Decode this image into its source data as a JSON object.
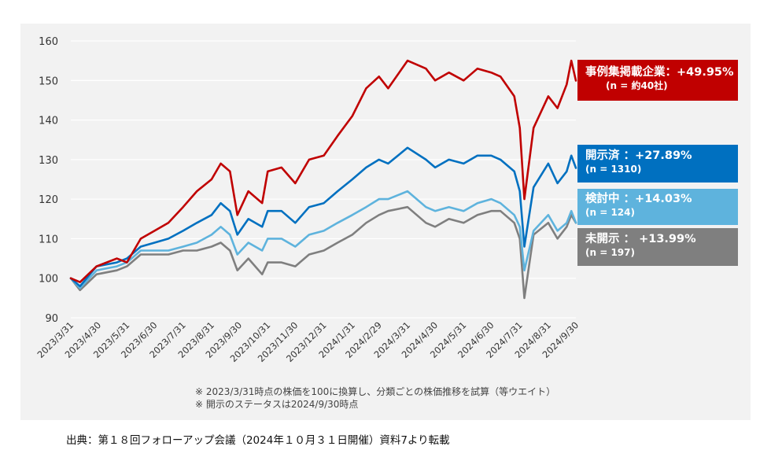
{
  "chart_data": {
    "type": "line",
    "title": "",
    "xlabel": "",
    "ylabel": "",
    "ylim": [
      90,
      160
    ],
    "yticks": [
      90,
      100,
      110,
      120,
      130,
      140,
      150,
      160
    ],
    "xlim": [
      "2023-03-31",
      "2024-09-30"
    ],
    "xticks": [
      "2023/3/31",
      "2023/4/30",
      "2023/5/31",
      "2023/6/30",
      "2023/7/31",
      "2023/8/31",
      "2023/9/30",
      "2023/10/31",
      "2023/11/30",
      "2023/12/31",
      "2024/1/31",
      "2024/2/29",
      "2024/3/31",
      "2024/4/30",
      "2024/5/31",
      "2024/6/30",
      "2024/7/31",
      "2024/8/31",
      "2024/9/30"
    ],
    "grid": true,
    "legend": "right",
    "series": [
      {
        "name": "事例集掲載企業：+49.95%",
        "sub": "(n = 約40社)",
        "color": "#c00000",
        "x": [
          "2023-03-31",
          "2023-04-10",
          "2023-04-28",
          "2023-05-20",
          "2023-05-31",
          "2023-06-15",
          "2023-06-30",
          "2023-07-15",
          "2023-07-31",
          "2023-08-15",
          "2023-08-31",
          "2023-09-10",
          "2023-09-20",
          "2023-09-28",
          "2023-10-10",
          "2023-10-25",
          "2023-10-31",
          "2023-11-15",
          "2023-11-30",
          "2023-12-15",
          "2023-12-31",
          "2024-01-15",
          "2024-01-31",
          "2024-02-15",
          "2024-02-29",
          "2024-03-10",
          "2024-03-31",
          "2024-04-20",
          "2024-04-30",
          "2024-05-15",
          "2024-05-31",
          "2024-06-15",
          "2024-06-30",
          "2024-07-10",
          "2024-07-25",
          "2024-07-31",
          "2024-08-05",
          "2024-08-15",
          "2024-08-31",
          "2024-09-10",
          "2024-09-20",
          "2024-09-25",
          "2024-09-30"
        ],
        "values": [
          100,
          99,
          103,
          105,
          104,
          110,
          112,
          114,
          118,
          122,
          125,
          129,
          127,
          116,
          122,
          119,
          127,
          128,
          124,
          130,
          131,
          136,
          141,
          148,
          151,
          148,
          155,
          153,
          150,
          152,
          150,
          153,
          152,
          151,
          146,
          138,
          120,
          138,
          146,
          143,
          149,
          155,
          149.95
        ]
      },
      {
        "name": "開示済 ：+27.89%",
        "sub": "(n = 1310)",
        "color": "#0070c0",
        "x": [
          "2023-03-31",
          "2023-04-10",
          "2023-04-28",
          "2023-05-20",
          "2023-05-31",
          "2023-06-15",
          "2023-06-30",
          "2023-07-15",
          "2023-07-31",
          "2023-08-15",
          "2023-08-31",
          "2023-09-10",
          "2023-09-20",
          "2023-09-28",
          "2023-10-10",
          "2023-10-25",
          "2023-10-31",
          "2023-11-15",
          "2023-11-30",
          "2023-12-15",
          "2023-12-31",
          "2024-01-15",
          "2024-01-31",
          "2024-02-15",
          "2024-02-29",
          "2024-03-10",
          "2024-03-31",
          "2024-04-20",
          "2024-04-30",
          "2024-05-15",
          "2024-05-31",
          "2024-06-15",
          "2024-06-30",
          "2024-07-10",
          "2024-07-25",
          "2024-07-31",
          "2024-08-05",
          "2024-08-15",
          "2024-08-31",
          "2024-09-10",
          "2024-09-20",
          "2024-09-25",
          "2024-09-30"
        ],
        "values": [
          100,
          98,
          103,
          104,
          105,
          108,
          109,
          110,
          112,
          114,
          116,
          119,
          117,
          111,
          115,
          113,
          117,
          117,
          114,
          118,
          119,
          122,
          125,
          128,
          130,
          129,
          133,
          130,
          128,
          130,
          129,
          131,
          131,
          130,
          127,
          122,
          108,
          123,
          129,
          124,
          127,
          131,
          127.89
        ]
      },
      {
        "name": "検討中 ：+14.03%",
        "sub": "(n = 124)",
        "color": "#5eb3dd",
        "x": [
          "2023-03-31",
          "2023-04-10",
          "2023-04-28",
          "2023-05-20",
          "2023-05-31",
          "2023-06-15",
          "2023-06-30",
          "2023-07-15",
          "2023-07-31",
          "2023-08-15",
          "2023-08-31",
          "2023-09-10",
          "2023-09-20",
          "2023-09-28",
          "2023-10-10",
          "2023-10-25",
          "2023-10-31",
          "2023-11-15",
          "2023-11-30",
          "2023-12-15",
          "2023-12-31",
          "2024-01-15",
          "2024-01-31",
          "2024-02-15",
          "2024-02-29",
          "2024-03-10",
          "2024-03-31",
          "2024-04-20",
          "2024-04-30",
          "2024-05-15",
          "2024-05-31",
          "2024-06-15",
          "2024-06-30",
          "2024-07-10",
          "2024-07-25",
          "2024-07-31",
          "2024-08-05",
          "2024-08-15",
          "2024-08-31",
          "2024-09-10",
          "2024-09-20",
          "2024-09-25",
          "2024-09-30"
        ],
        "values": [
          100,
          97.5,
          102,
          103,
          104,
          107,
          107,
          107,
          108,
          109,
          111,
          113,
          111,
          106,
          109,
          107,
          110,
          110,
          108,
          111,
          112,
          114,
          116,
          118,
          120,
          120,
          122,
          118,
          117,
          118,
          117,
          119,
          120,
          119,
          116,
          113,
          102,
          112,
          116,
          112,
          114,
          117,
          114.03
        ]
      },
      {
        "name": "未開示 ： +13.99%",
        "sub": "(n = 197)",
        "color": "#7f7f7f",
        "x": [
          "2023-03-31",
          "2023-04-10",
          "2023-04-28",
          "2023-05-20",
          "2023-05-31",
          "2023-06-15",
          "2023-06-30",
          "2023-07-15",
          "2023-07-31",
          "2023-08-15",
          "2023-08-31",
          "2023-09-10",
          "2023-09-20",
          "2023-09-28",
          "2023-10-10",
          "2023-10-25",
          "2023-10-31",
          "2023-11-15",
          "2023-11-30",
          "2023-12-15",
          "2023-12-31",
          "2024-01-15",
          "2024-01-31",
          "2024-02-15",
          "2024-02-29",
          "2024-03-10",
          "2024-03-31",
          "2024-04-20",
          "2024-04-30",
          "2024-05-15",
          "2024-05-31",
          "2024-06-15",
          "2024-06-30",
          "2024-07-10",
          "2024-07-25",
          "2024-07-31",
          "2024-08-05",
          "2024-08-15",
          "2024-08-31",
          "2024-09-10",
          "2024-09-20",
          "2024-09-25",
          "2024-09-30"
        ],
        "values": [
          100,
          97,
          101,
          102,
          103,
          106,
          106,
          106,
          107,
          107,
          108,
          109,
          107,
          102,
          105,
          101,
          104,
          104,
          103,
          106,
          107,
          109,
          111,
          114,
          116,
          117,
          118,
          114,
          113,
          115,
          114,
          116,
          117,
          117,
          114,
          110,
          95,
          111,
          114,
          110,
          113,
          116,
          113.99
        ]
      }
    ]
  },
  "notes": [
    "※ 2023/3/31時点の株価を100に換算し、分類ごとの株価推移を試算（等ウエイト）",
    "※ 開示のステータスは2024/9/30時点"
  ],
  "source": "出典：第１８回フォローアップ会議（2024年１０月３１日開催）資料7より転載"
}
